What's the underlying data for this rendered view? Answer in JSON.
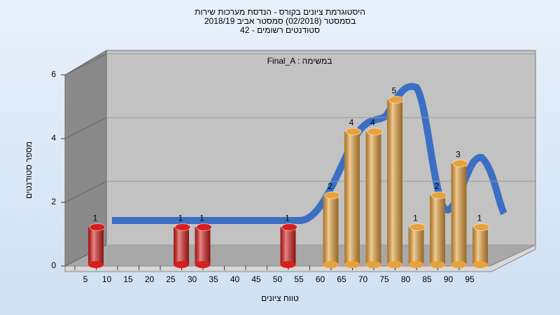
{
  "chart_data": {
    "type": "bar",
    "title": "היסטוגרמת ציונים בקורס - הנדסת מערכות שירות",
    "subtitle": [
      "בסמסטר  (02/2018)  סמסטר אביב 2018/19",
      "סטודנטים רשומים - 42"
    ],
    "annotation": "Final_A : במשימה",
    "x_label": "טווח ציונים",
    "y_label": "מספר סטודנטים",
    "categories": [
      "5",
      "10",
      "15",
      "20",
      "25",
      "30",
      "35",
      "40",
      "45",
      "50",
      "55",
      "60",
      "65",
      "70",
      "75",
      "80",
      "85",
      "90",
      "95"
    ],
    "values": [
      1,
      0,
      0,
      0,
      1,
      1,
      0,
      0,
      0,
      1,
      0,
      2,
      4,
      4,
      5,
      1,
      2,
      3,
      1
    ],
    "colors": [
      "#d81e1e",
      "#d81e1e",
      "#d81e1e",
      "#d81e1e",
      "#d81e1e",
      "#d81e1e",
      "#d81e1e",
      "#d81e1e",
      "#d81e1e",
      "#d81e1e",
      "#d81e1e",
      "#e8a23c",
      "#e8a23c",
      "#e8a23c",
      "#e8a23c",
      "#e8a23c",
      "#e8a23c",
      "#e8a23c",
      "#e8a23c"
    ],
    "ylim": [
      0,
      6
    ],
    "yticks": [
      0,
      2,
      4,
      6
    ],
    "grid": true
  }
}
